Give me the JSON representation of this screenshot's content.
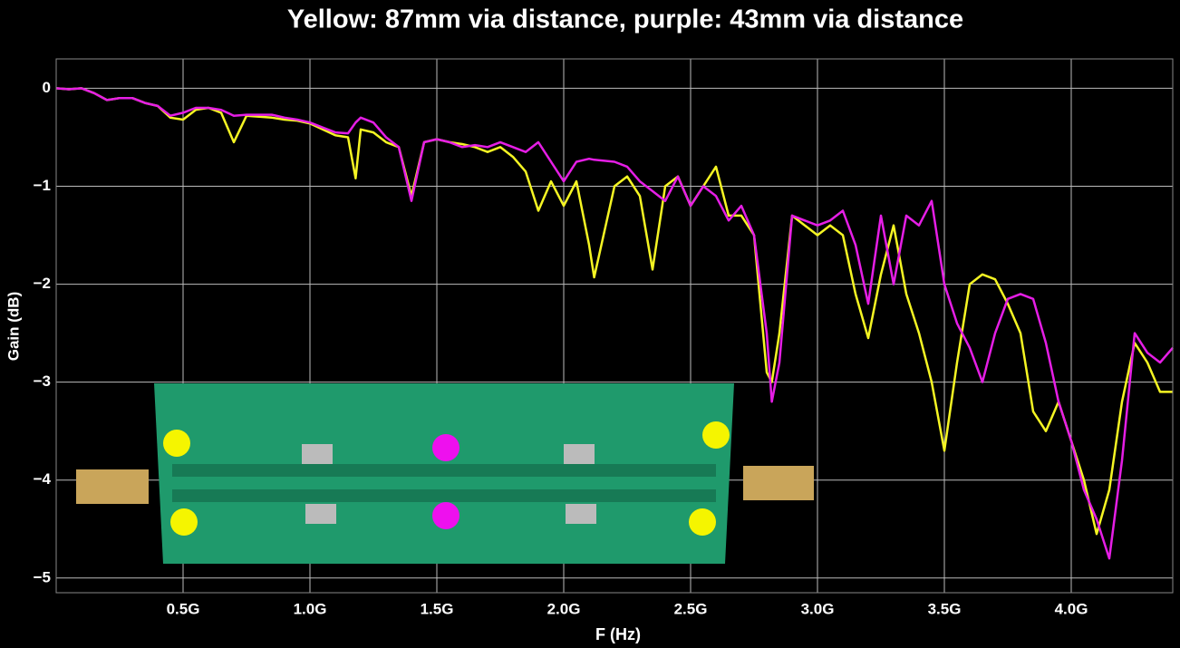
{
  "chart_data": {
    "type": "line",
    "title": "Yellow: 87mm via distance, purple: 43mm via distance",
    "x_label": "F (Hz)",
    "y_label": "Gain (dB)",
    "xlim": [
      0,
      4400000000
    ],
    "ylim": [
      -5.15,
      0.3
    ],
    "xticks": [
      {
        "value": 500000000,
        "label": "0.5G"
      },
      {
        "value": 1000000000,
        "label": "1.0G"
      },
      {
        "value": 1500000000,
        "label": "1.5G"
      },
      {
        "value": 2000000000,
        "label": "2.0G"
      },
      {
        "value": 2500000000,
        "label": "2.5G"
      },
      {
        "value": 3000000000,
        "label": "3.0G"
      },
      {
        "value": 3500000000,
        "label": "3.5G"
      },
      {
        "value": 4000000000,
        "label": "4.0G"
      }
    ],
    "yticks": [
      0,
      {
        "value": -1,
        "label": "−1"
      },
      {
        "value": -2,
        "label": "−2"
      },
      {
        "value": -3,
        "label": "−3"
      },
      {
        "value": -4,
        "label": "−4"
      },
      {
        "value": -5,
        "label": "−5"
      }
    ],
    "grid": true,
    "x": [
      0,
      50000000,
      100000000,
      150000000,
      200000000,
      250000000,
      300000000,
      350000000,
      400000000,
      450000000,
      500000000,
      550000000,
      600000000,
      650000000,
      700000000,
      750000000,
      800000000,
      850000000,
      900000000,
      950000000,
      1000000000,
      1050000000,
      1100000000,
      1150000000,
      1180000000,
      1200000000,
      1250000000,
      1300000000,
      1350000000,
      1400000000,
      1450000000,
      1500000000,
      1550000000,
      1600000000,
      1650000000,
      1700000000,
      1750000000,
      1800000000,
      1850000000,
      1900000000,
      1950000000,
      2000000000,
      2050000000,
      2100000000,
      2120000000,
      2200000000,
      2250000000,
      2300000000,
      2350000000,
      2400000000,
      2450000000,
      2500000000,
      2550000000,
      2600000000,
      2650000000,
      2700000000,
      2750000000,
      2800000000,
      2820000000,
      2850000000,
      2900000000,
      2950000000,
      3000000000,
      3050000000,
      3100000000,
      3150000000,
      3200000000,
      3250000000,
      3300000000,
      3350000000,
      3400000000,
      3450000000,
      3500000000,
      3550000000,
      3600000000,
      3650000000,
      3700000000,
      3750000000,
      3800000000,
      3850000000,
      3900000000,
      3950000000,
      4000000000,
      4050000000,
      4100000000,
      4150000000,
      4200000000,
      4250000000,
      4300000000,
      4350000000,
      4400000000
    ],
    "series": [
      {
        "name": "Yellow",
        "color": "#f5f523",
        "values": [
          0,
          -0.01,
          0,
          -0.05,
          -0.12,
          -0.1,
          -0.1,
          -0.15,
          -0.18,
          -0.3,
          -0.32,
          -0.22,
          -0.2,
          -0.25,
          -0.55,
          -0.28,
          -0.29,
          -0.3,
          -0.32,
          -0.33,
          -0.36,
          -0.42,
          -0.48,
          -0.5,
          -0.92,
          -0.42,
          -0.45,
          -0.55,
          -0.6,
          -1.1,
          -0.55,
          -0.52,
          -0.55,
          -0.57,
          -0.6,
          -0.65,
          -0.6,
          -0.7,
          -0.85,
          -1.25,
          -0.95,
          -1.2,
          -0.95,
          -1.6,
          -1.93,
          -1.0,
          -0.9,
          -1.1,
          -1.85,
          -1.0,
          -0.9,
          -1.2,
          -1.0,
          -0.8,
          -1.3,
          -1.3,
          -1.5,
          -2.9,
          -3.0,
          -2.5,
          -1.3,
          -1.4,
          -1.5,
          -1.4,
          -1.5,
          -2.1,
          -2.55,
          -1.9,
          -1.4,
          -2.1,
          -2.5,
          -3.0,
          -3.7,
          -2.8,
          -2.0,
          -1.9,
          -1.95,
          -2.2,
          -2.5,
          -3.3,
          -3.5,
          -3.2,
          -3.6,
          -4.0,
          -4.55,
          -4.1,
          -3.2,
          -2.6,
          -2.8,
          -3.1,
          -3.1
        ]
      },
      {
        "name": "Purple",
        "color": "#e51ee5",
        "values": [
          0,
          -0.01,
          0,
          -0.05,
          -0.12,
          -0.1,
          -0.1,
          -0.15,
          -0.18,
          -0.28,
          -0.25,
          -0.2,
          -0.2,
          -0.22,
          -0.28,
          -0.27,
          -0.27,
          -0.27,
          -0.3,
          -0.32,
          -0.35,
          -0.4,
          -0.45,
          -0.46,
          -0.35,
          -0.3,
          -0.35,
          -0.5,
          -0.6,
          -1.15,
          -0.55,
          -0.52,
          -0.55,
          -0.6,
          -0.58,
          -0.6,
          -0.55,
          -0.6,
          -0.65,
          -0.55,
          -0.75,
          -0.95,
          -0.75,
          -0.72,
          -0.73,
          -0.75,
          -0.8,
          -0.95,
          -1.05,
          -1.15,
          -0.9,
          -1.2,
          -1.0,
          -1.1,
          -1.35,
          -1.2,
          -1.5,
          -2.5,
          -3.2,
          -2.8,
          -1.3,
          -1.35,
          -1.4,
          -1.35,
          -1.25,
          -1.6,
          -2.2,
          -1.3,
          -2.0,
          -1.3,
          -1.4,
          -1.15,
          -2.0,
          -2.4,
          -2.65,
          -3.0,
          -2.5,
          -2.15,
          -2.1,
          -2.15,
          -2.6,
          -3.2,
          -3.6,
          -4.1,
          -4.4,
          -4.8,
          -3.8,
          -2.5,
          -2.7,
          -2.8,
          -2.65
        ]
      }
    ]
  }
}
